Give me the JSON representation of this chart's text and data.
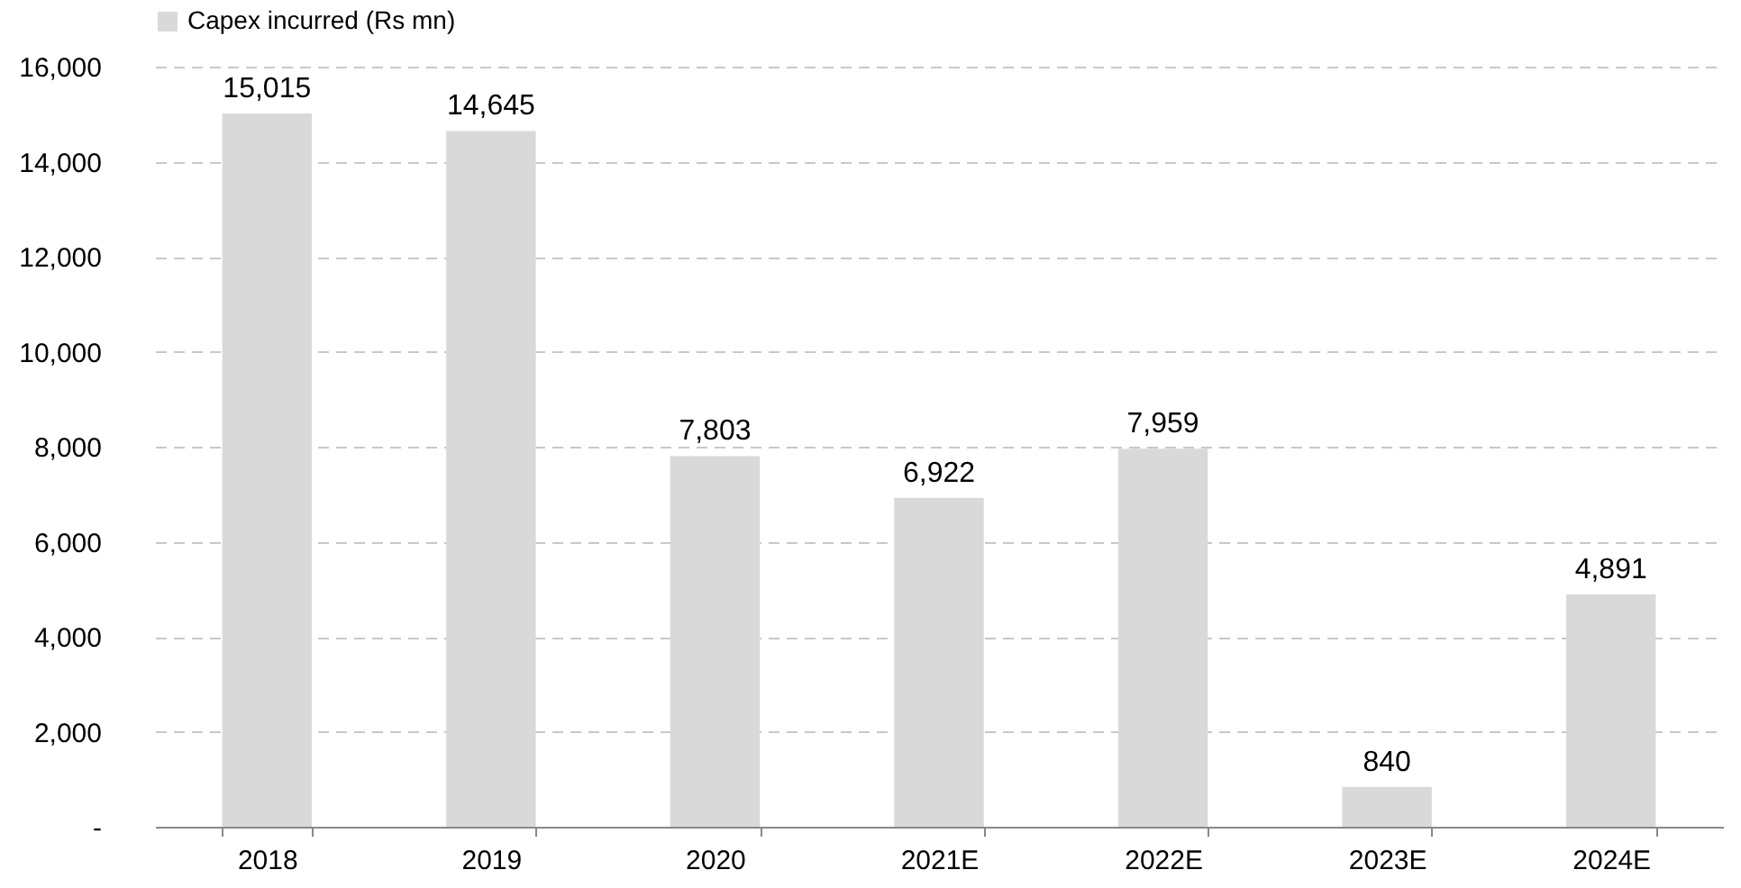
{
  "chart_data": {
    "type": "bar",
    "categories": [
      "2018",
      "2019",
      "2020",
      "2021E",
      "2022E",
      "2023E",
      "2024E"
    ],
    "series": [
      {
        "name": "Capex incurred (Rs mn)",
        "color": "#d9d9d9",
        "values": [
          15015,
          14645,
          7803,
          6922,
          7959,
          840,
          4891
        ],
        "value_labels": [
          "15,015",
          "14,645",
          "7,803",
          "6,922",
          "7,959",
          "840",
          "4,891"
        ]
      }
    ],
    "ylim": [
      0,
      16000
    ],
    "yticks": [
      {
        "value": 0,
        "label": "-"
      },
      {
        "value": 2000,
        "label": "2,000"
      },
      {
        "value": 4000,
        "label": "4,000"
      },
      {
        "value": 6000,
        "label": "6,000"
      },
      {
        "value": 8000,
        "label": "8,000"
      },
      {
        "value": 10000,
        "label": "10,000"
      },
      {
        "value": 12000,
        "label": "12,000"
      },
      {
        "value": 14000,
        "label": "14,000"
      },
      {
        "value": 16000,
        "label": "16,000"
      }
    ],
    "grid": "y",
    "legend": "top"
  }
}
